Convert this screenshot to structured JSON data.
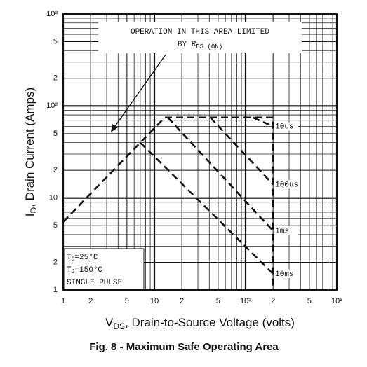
{
  "chart_data": {
    "type": "line",
    "title": "Fig. 8 - Maximum Safe Operating Area",
    "x_label": [
      "V",
      "DS",
      ", Drain-to-Source Voltage (volts)"
    ],
    "y_label": [
      "I",
      "D",
      ", Drain Current (Amps)"
    ],
    "log_x": true,
    "log_y": true,
    "grid": true,
    "xlim": [
      1,
      1000
    ],
    "ylim": [
      1,
      1000
    ],
    "xticks": [
      1,
      2,
      5,
      10,
      {
        "value": 20,
        "label": "2"
      },
      {
        "value": 50,
        "label": "5"
      },
      {
        "value": 100,
        "label": "10²"
      },
      {
        "value": 200,
        "label": "2"
      },
      {
        "value": 500,
        "label": "5"
      },
      {
        "value": 1000,
        "label": "10³"
      }
    ],
    "yticks": [
      1,
      2,
      5,
      10,
      {
        "value": 20,
        "label": "2"
      },
      {
        "value": 50,
        "label": "5"
      },
      {
        "value": 100,
        "label": "10²"
      },
      {
        "value": 200,
        "label": "2"
      },
      {
        "value": 500,
        "label": "5"
      },
      {
        "value": 1000,
        "label": "10³"
      }
    ],
    "xminor": [
      3,
      4,
      6,
      7,
      8,
      9,
      30,
      40,
      60,
      70,
      80,
      90,
      300,
      400,
      600,
      700,
      800,
      900
    ],
    "yminor": [
      3,
      4,
      6,
      7,
      8,
      9,
      30,
      40,
      60,
      70,
      80,
      90,
      300,
      400,
      600,
      700,
      800,
      900
    ],
    "series": [
      {
        "color": "#111111",
        "x": [
          1,
          13,
          200,
          200
        ],
        "values": [
          5.5,
          75,
          75,
          1
        ]
      },
      {
        "name": "10us",
        "color": "#111111",
        "x": [
          120,
          200
        ],
        "values": [
          75,
          60
        ]
      },
      {
        "name": "100us",
        "color": "#111111",
        "x": [
          41,
          200
        ],
        "values": [
          75,
          14
        ]
      },
      {
        "name": "1ms",
        "color": "#111111",
        "x": [
          14,
          200
        ],
        "values": [
          75,
          4.4
        ]
      },
      {
        "name": "10ms",
        "color": "#111111",
        "x": [
          7,
          200
        ],
        "values": [
          40,
          1.5
        ]
      }
    ],
    "annotation_top": [
      "OPERATION IN THIS AREA LIMITED",
      "BY R",
      "DS (ON)"
    ],
    "annotation_box": [
      [
        "T",
        "C",
        "=25°C"
      ],
      [
        "T",
        "J",
        "=150°C"
      ],
      [
        "SINGLE PULSE"
      ]
    ]
  }
}
